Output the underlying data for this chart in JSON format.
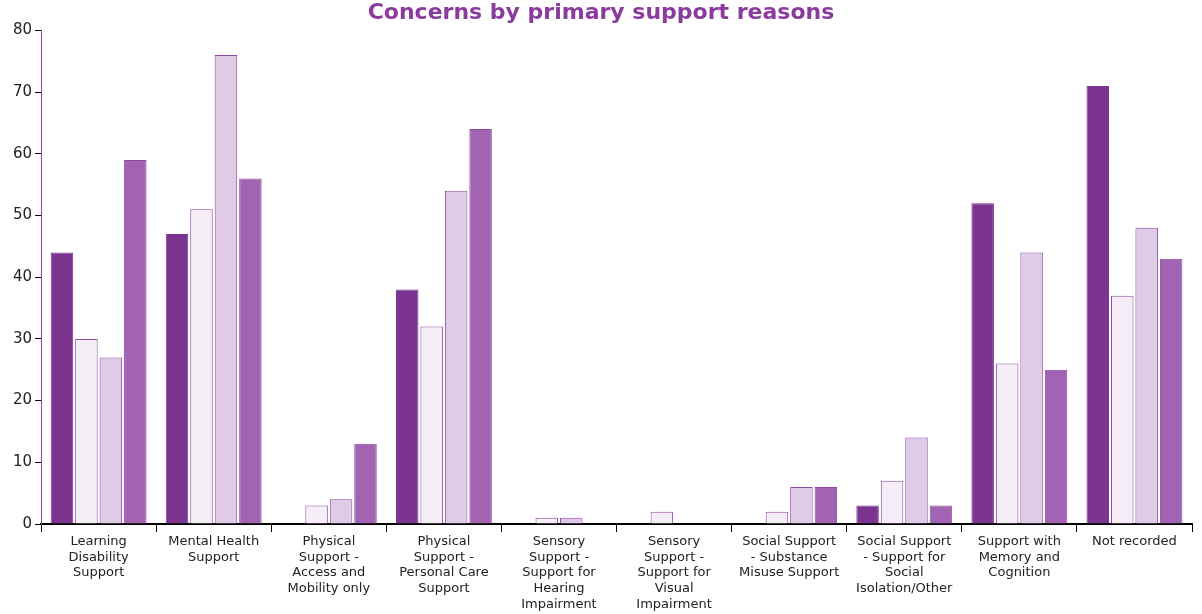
{
  "chart_data": {
    "type": "bar",
    "title": "Concerns by primary support reasons",
    "categories": [
      "Learning Disability Support",
      "Mental Health Support",
      "Physical Support - Access and Mobility only",
      "Physical Support - Personal Care Support",
      "Sensory Support - Support for Hearing Impairment",
      "Sensory Support - Support for Visual Impairment",
      "Social Support - Substance Misuse Support",
      "Social Support - Support for Social Isolation/Other",
      "Support with Memory and Cognition",
      "Not recorded"
    ],
    "series": [
      {
        "color": "#7b3590",
        "values": [
          44,
          47,
          0,
          38,
          0,
          0,
          0,
          3,
          52,
          71
        ]
      },
      {
        "color": "#f5eef7",
        "values": [
          30,
          51,
          3,
          32,
          1,
          2,
          2,
          7,
          26,
          37
        ]
      },
      {
        "color": "#dfcbe5",
        "values": [
          27,
          76,
          4,
          54,
          1,
          0,
          6,
          14,
          44,
          48
        ]
      },
      {
        "color": "#a263b3",
        "values": [
          59,
          56,
          13,
          64,
          0,
          0,
          6,
          3,
          25,
          43
        ]
      }
    ],
    "ylim": [
      0,
      80
    ],
    "yticks": [
      0,
      10,
      20,
      30,
      40,
      50,
      60,
      70,
      80
    ],
    "grid": false,
    "legend": false
  }
}
